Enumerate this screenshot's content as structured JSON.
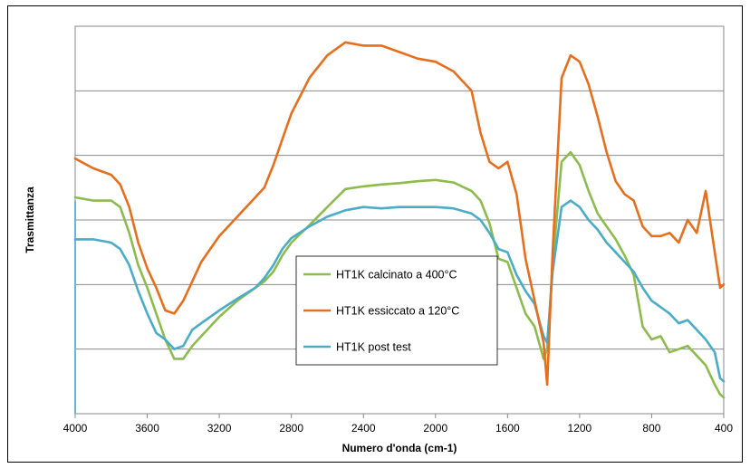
{
  "chart_data": {
    "type": "line",
    "title": "",
    "xlabel": "Numero d'onda (cm-1)",
    "ylabel": "Trasmittanza",
    "x_reversed": true,
    "xlim": [
      4000,
      400
    ],
    "ylim": [
      0,
      6
    ],
    "y_tick_labels_shown": false,
    "grid": "horizontal",
    "legend_position": "center",
    "x_ticks": [
      4000,
      3600,
      3200,
      2800,
      2400,
      2000,
      1600,
      1200,
      800,
      400
    ],
    "x_tick_labels": [
      "4000",
      "3600",
      "3200",
      "2800",
      "2400",
      "2000",
      "1600",
      "1200",
      "800",
      "400"
    ],
    "series": [
      {
        "name": "HT1K calcinato a 400°C",
        "color": "#8DBB4F",
        "x": [
          4000,
          3900,
          3800,
          3750,
          3700,
          3650,
          3600,
          3550,
          3500,
          3450,
          3400,
          3350,
          3300,
          3200,
          3100,
          3000,
          2950,
          2900,
          2850,
          2800,
          2700,
          2600,
          2500,
          2400,
          2300,
          2200,
          2100,
          2000,
          1900,
          1800,
          1750,
          1700,
          1650,
          1600,
          1550,
          1500,
          1450,
          1400,
          1380,
          1350,
          1300,
          1250,
          1200,
          1150,
          1100,
          1050,
          1000,
          950,
          900,
          850,
          800,
          750,
          700,
          650,
          600,
          550,
          500,
          450,
          420,
          400
        ],
        "y": [
          3.35,
          3.3,
          3.3,
          3.2,
          2.8,
          2.3,
          1.95,
          1.55,
          1.15,
          0.85,
          0.85,
          1.05,
          1.2,
          1.5,
          1.75,
          1.95,
          2.05,
          2.2,
          2.45,
          2.65,
          2.92,
          3.2,
          3.48,
          3.52,
          3.55,
          3.57,
          3.6,
          3.62,
          3.58,
          3.45,
          3.3,
          2.95,
          2.4,
          2.35,
          1.95,
          1.55,
          1.35,
          0.85,
          1.0,
          2.3,
          3.9,
          4.05,
          3.85,
          3.45,
          3.1,
          2.9,
          2.7,
          2.45,
          2.15,
          1.35,
          1.15,
          1.2,
          0.95,
          1.0,
          1.05,
          0.9,
          0.75,
          0.45,
          0.3,
          0.25
        ]
      },
      {
        "name": "HT1K essiccato a 120°C",
        "color": "#E46F1F",
        "x": [
          4000,
          3900,
          3800,
          3750,
          3700,
          3650,
          3600,
          3550,
          3500,
          3450,
          3400,
          3350,
          3300,
          3200,
          3100,
          3000,
          2950,
          2900,
          2850,
          2800,
          2700,
          2600,
          2500,
          2400,
          2300,
          2200,
          2100,
          2000,
          1900,
          1800,
          1750,
          1700,
          1650,
          1600,
          1550,
          1500,
          1450,
          1400,
          1380,
          1350,
          1300,
          1250,
          1200,
          1150,
          1100,
          1050,
          1000,
          950,
          900,
          850,
          800,
          750,
          700,
          650,
          600,
          550,
          500,
          450,
          420,
          400
        ],
        "y": [
          3.95,
          3.8,
          3.7,
          3.55,
          3.2,
          2.65,
          2.25,
          1.95,
          1.6,
          1.55,
          1.75,
          2.05,
          2.35,
          2.75,
          3.05,
          3.35,
          3.5,
          3.85,
          4.25,
          4.65,
          5.2,
          5.55,
          5.75,
          5.7,
          5.7,
          5.6,
          5.5,
          5.45,
          5.3,
          5.0,
          4.35,
          3.9,
          3.8,
          3.9,
          3.4,
          2.4,
          1.75,
          1.1,
          0.45,
          2.5,
          5.2,
          5.55,
          5.45,
          5.1,
          4.6,
          4.05,
          3.6,
          3.4,
          3.3,
          2.9,
          2.75,
          2.75,
          2.8,
          2.65,
          3.0,
          2.8,
          3.45,
          2.5,
          1.95,
          2.0
        ]
      },
      {
        "name": "HT1K post test",
        "color": "#4BACC6",
        "x": [
          4000,
          3900,
          3800,
          3750,
          3700,
          3650,
          3600,
          3550,
          3500,
          3450,
          3400,
          3350,
          3300,
          3200,
          3100,
          3000,
          2950,
          2900,
          2850,
          2800,
          2700,
          2600,
          2500,
          2400,
          2300,
          2200,
          2100,
          2000,
          1900,
          1800,
          1750,
          1700,
          1650,
          1600,
          1550,
          1500,
          1450,
          1400,
          1380,
          1350,
          1300,
          1250,
          1200,
          1150,
          1100,
          1050,
          1000,
          950,
          900,
          850,
          800,
          750,
          700,
          650,
          600,
          550,
          500,
          450,
          420,
          400
        ],
        "y": [
          2.7,
          2.7,
          2.65,
          2.55,
          2.3,
          1.9,
          1.55,
          1.25,
          1.15,
          1.0,
          1.05,
          1.3,
          1.4,
          1.6,
          1.78,
          1.95,
          2.1,
          2.3,
          2.55,
          2.72,
          2.9,
          3.05,
          3.15,
          3.2,
          3.18,
          3.2,
          3.2,
          3.2,
          3.18,
          3.1,
          3.0,
          2.8,
          2.55,
          2.5,
          2.15,
          1.9,
          1.7,
          1.2,
          1.1,
          2.2,
          3.2,
          3.3,
          3.2,
          3.0,
          2.85,
          2.65,
          2.5,
          2.35,
          2.2,
          1.95,
          1.75,
          1.65,
          1.55,
          1.4,
          1.45,
          1.3,
          1.15,
          0.95,
          0.55,
          0.5
        ]
      }
    ]
  }
}
